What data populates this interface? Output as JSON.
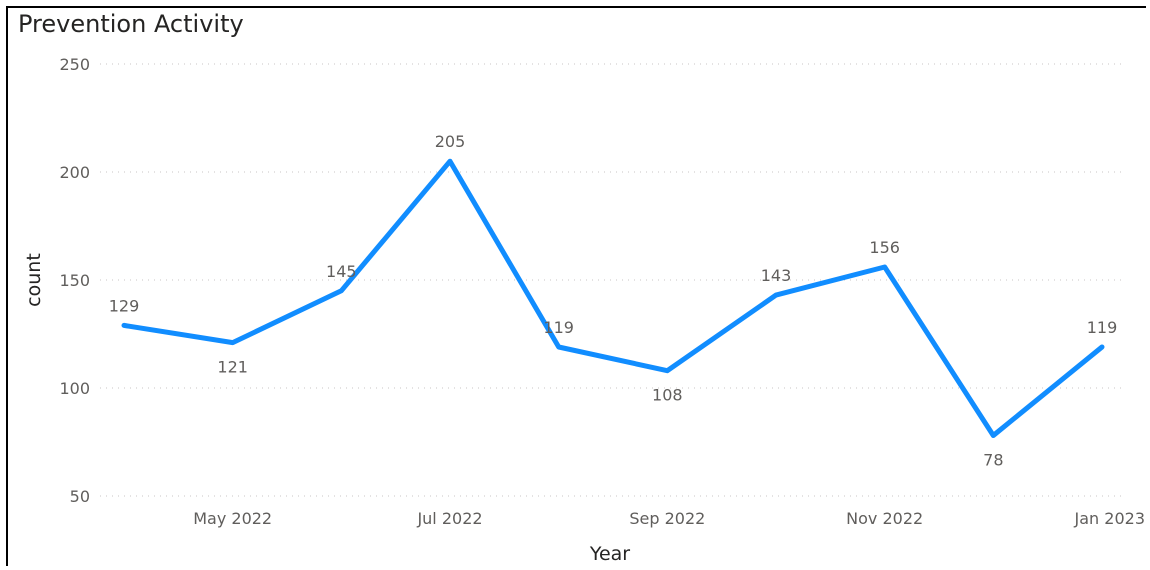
{
  "chart_data": {
    "type": "line",
    "title": "Prevention Activity",
    "xlabel": "Year",
    "ylabel": "count",
    "ylim": [
      50,
      250
    ],
    "yticks": [
      50,
      100,
      150,
      200,
      250
    ],
    "x": [
      "2022-04",
      "2022-05",
      "2022-06",
      "2022-07",
      "2022-08",
      "2022-09",
      "2022-10",
      "2022-11",
      "2022-12",
      "2023-01"
    ],
    "xtick_labels": [
      {
        "x": "2022-05",
        "label": "May 2022"
      },
      {
        "x": "2022-07",
        "label": "Jul 2022"
      },
      {
        "x": "2022-09",
        "label": "Sep 2022"
      },
      {
        "x": "2022-11",
        "label": "Nov 2022"
      },
      {
        "x": "2023-01",
        "label": "Jan 2023"
      }
    ],
    "series": [
      {
        "values": [
          129,
          121,
          145,
          205,
          119,
          108,
          143,
          156,
          78,
          119
        ]
      }
    ],
    "grid": true,
    "line_color": "#118DFF"
  }
}
